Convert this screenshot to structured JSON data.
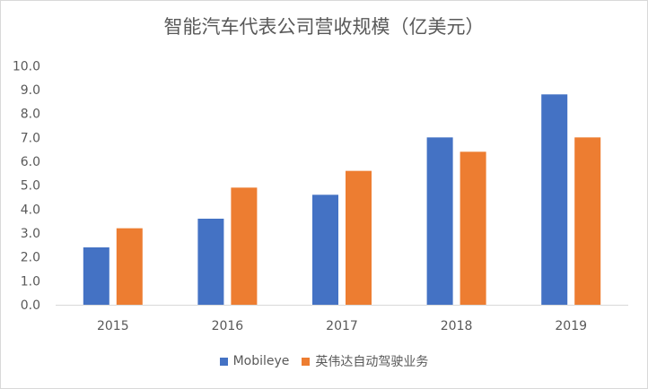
{
  "chart_data": {
    "type": "bar",
    "title": "智能汽车代表公司营收规模（亿美元）",
    "categories": [
      "2015",
      "2016",
      "2017",
      "2018",
      "2019"
    ],
    "series": [
      {
        "name": "Mobileye",
        "color": "#4472C4",
        "values": [
          2.4,
          3.6,
          4.6,
          7.0,
          8.8
        ]
      },
      {
        "name": "英伟达自动驾驶业务",
        "color": "#ED7D31",
        "values": [
          3.2,
          4.9,
          5.6,
          6.4,
          7.0
        ]
      }
    ],
    "ylim": [
      0,
      10
    ],
    "yticks": [
      "0.0",
      "1.0",
      "2.0",
      "3.0",
      "4.0",
      "5.0",
      "6.0",
      "7.0",
      "8.0",
      "9.0",
      "10.0"
    ],
    "grid": false,
    "legend": "bottom"
  }
}
